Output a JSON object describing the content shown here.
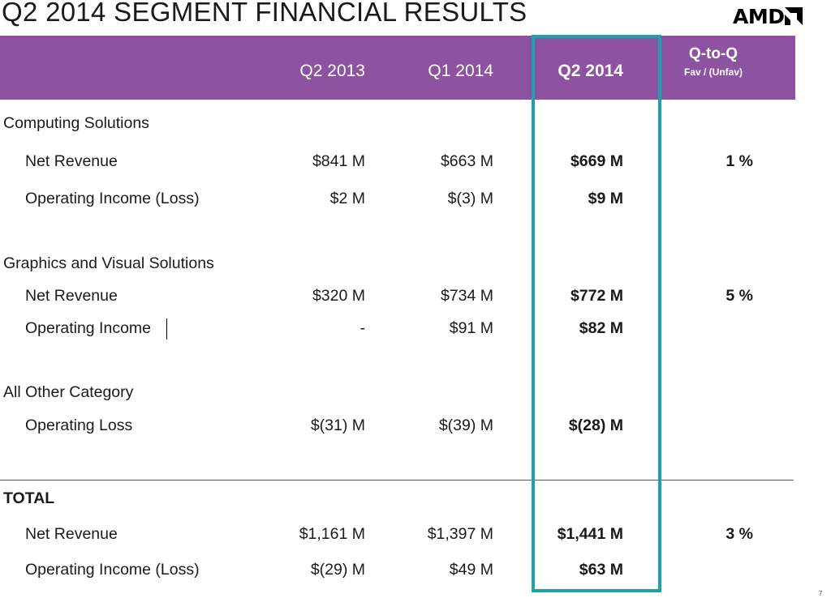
{
  "title": "Q2 2014 SEGMENT FINANCIAL RESULTS",
  "logo_text": "AMD",
  "colors": {
    "header": "#8e53a0",
    "highlight": "#1aa3ad"
  },
  "columns": {
    "q2_2013": "Q2 2013",
    "q1_2014": "Q1 2014",
    "q2_2014": "Q2 2014",
    "qtoq": "Q-to-Q",
    "qtoq_sub": "Fav / (Unfav)"
  },
  "computing": {
    "section": "Computing Solutions",
    "rev": {
      "label": "Net Revenue",
      "q2_2013": "$841 M",
      "q1_2014": "$663 M",
      "q2_2014": "$669 M",
      "qtoq": "1 %"
    },
    "op": {
      "label": "Operating Income (Loss)",
      "q2_2013": "$2 M",
      "q1_2014": "$(3) M",
      "q2_2014": "$9 M"
    }
  },
  "graphics": {
    "section": "Graphics and Visual Solutions",
    "rev": {
      "label": "Net Revenue",
      "q2_2013": "$320 M",
      "q1_2014": "$734 M",
      "q2_2014": "$772 M",
      "qtoq": "5 %"
    },
    "op": {
      "label": "Operating Income",
      "q2_2013": "-",
      "q1_2014": "$91 M",
      "q2_2014": "$82 M"
    }
  },
  "other": {
    "section": "All Other Category",
    "op": {
      "label": "Operating Loss",
      "q2_2013": "$(31) M",
      "q1_2014": "$(39) M",
      "q2_2014": "$(28) M"
    }
  },
  "total": {
    "section": "TOTAL",
    "rev": {
      "label": "Net Revenue",
      "q2_2013": "$1,161 M",
      "q1_2014": "$1,397 M",
      "q2_2014": "$1,441 M",
      "qtoq": "3 %"
    },
    "op": {
      "label": "Operating Income (Loss)",
      "q2_2013": "$(29) M",
      "q1_2014": "$49 M",
      "q2_2014": "$63 M"
    }
  },
  "page_number": "7"
}
